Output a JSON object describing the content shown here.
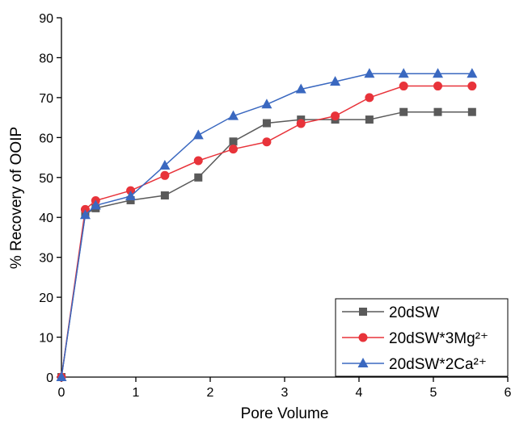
{
  "chart_data": {
    "type": "line",
    "x_label": "Pore Volume",
    "y_label": "% Recovery of OOIP",
    "x": [
      0,
      0.32,
      0.46,
      0.93,
      1.39,
      1.84,
      2.31,
      2.76,
      3.22,
      3.68,
      4.14,
      4.6,
      5.06,
      5.52
    ],
    "series": [
      {
        "name": "20dSW",
        "color": "#5a5a5a",
        "marker": "square",
        "values": [
          0,
          40.8,
          42.3,
          44.3,
          45.5,
          50,
          59,
          63.6,
          64.5,
          64.5,
          64.5,
          66.4,
          66.4,
          66.4
        ]
      },
      {
        "name": "20dSW*3Mg²⁺",
        "color": "#e8333a",
        "marker": "circle",
        "values": [
          0,
          42,
          44.2,
          46.7,
          50.5,
          54.2,
          57.1,
          58.9,
          63.5,
          65.4,
          70,
          72.9,
          72.9,
          72.9
        ]
      },
      {
        "name": "20dSW*2Ca²⁺",
        "color": "#3a68c0",
        "marker": "triangle",
        "values": [
          0,
          40.6,
          43,
          45.3,
          53,
          60.6,
          65.4,
          68.3,
          72.1,
          74,
          76,
          76,
          76,
          76
        ]
      }
    ],
    "xlim": [
      0,
      6
    ],
    "xticks": [
      0,
      1,
      2,
      3,
      4,
      5,
      6
    ],
    "ylim": [
      0,
      90
    ],
    "yticks": [
      0,
      10,
      20,
      30,
      40,
      50,
      60,
      70,
      80,
      90
    ],
    "legend": "lower right"
  }
}
